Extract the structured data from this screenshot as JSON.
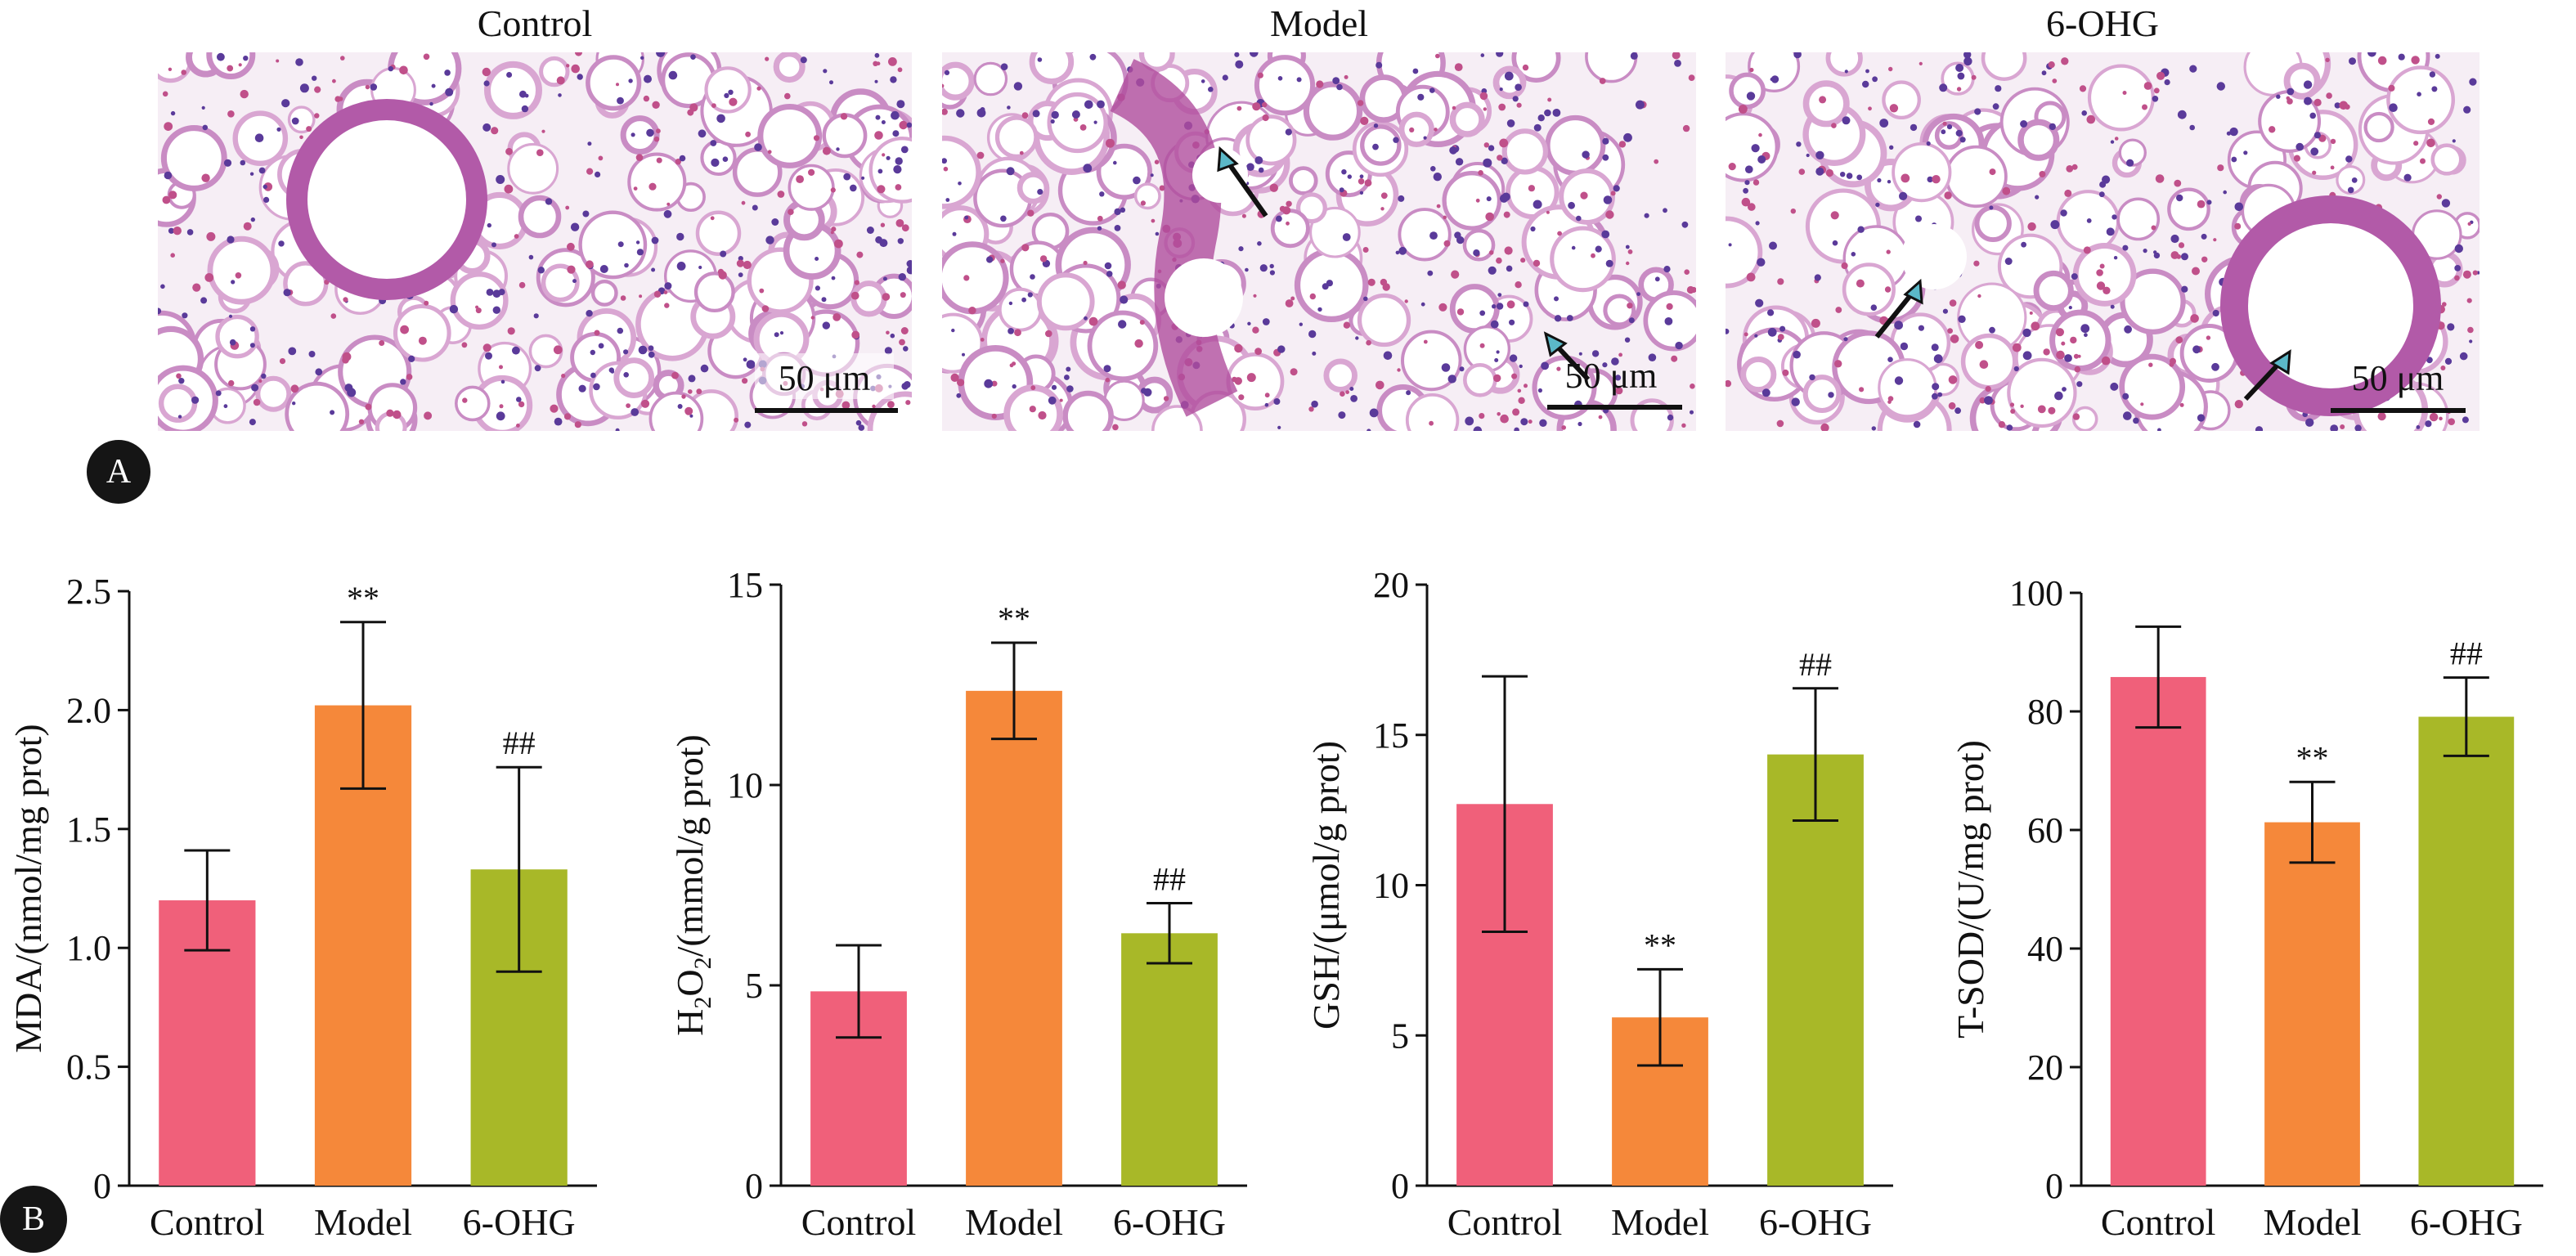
{
  "panel_a": {
    "letter": "A",
    "images": [
      {
        "title": "Control",
        "scale_bar": "50 μm"
      },
      {
        "title": "Model",
        "scale_bar": "50 μm"
      },
      {
        "title": "6-OHG",
        "scale_bar": "50 μm"
      }
    ]
  },
  "panel_b": {
    "letter": "B"
  },
  "colors": {
    "control": "#f0607a",
    "model": "#f5883a",
    "ohg": "#a8b828"
  },
  "chart_data": [
    {
      "type": "bar",
      "categories": [
        "Control",
        "Model",
        "6-OHG"
      ],
      "values": [
        1.2,
        2.02,
        1.33
      ],
      "errors": [
        0.21,
        0.35,
        0.43
      ],
      "annotations": [
        "",
        "**",
        "##"
      ],
      "ylabel_main": "MDA/(nmol/mg prot)",
      "ylabel_sub": "",
      "ylabel_tail": "",
      "ylim": [
        0,
        2.5
      ],
      "yticks": [
        0,
        0.5,
        1.0,
        1.5,
        2.0,
        2.5
      ],
      "ytick_labels": [
        "0",
        "0.5",
        "1.0",
        "1.5",
        "2.0",
        "2.5"
      ]
    },
    {
      "type": "bar",
      "categories": [
        "Control",
        "Model",
        "6-OHG"
      ],
      "values": [
        4.85,
        12.35,
        6.3
      ],
      "errors": [
        1.15,
        1.2,
        0.75
      ],
      "annotations": [
        "",
        "**",
        "##"
      ],
      "ylabel_main": "H",
      "ylabel_sub": "2",
      "ylabel_mid": "O",
      "ylabel_sub2": "2",
      "ylabel_tail": "/(mmol/g prot)",
      "ylim": [
        0,
        15
      ],
      "yticks": [
        0,
        5,
        10,
        15
      ],
      "ytick_labels": [
        "0",
        "5",
        "10",
        "15"
      ]
    },
    {
      "type": "bar",
      "categories": [
        "Control",
        "Model",
        "6-OHG"
      ],
      "values": [
        12.7,
        5.6,
        14.35
      ],
      "errors": [
        4.25,
        1.6,
        2.2
      ],
      "annotations": [
        "",
        "**",
        "##"
      ],
      "ylabel_main": "GSH/(μmol/g prot)",
      "ylabel_sub": "",
      "ylabel_tail": "",
      "ylim": [
        0,
        20
      ],
      "yticks": [
        0,
        5,
        10,
        15,
        20
      ],
      "ytick_labels": [
        "0",
        "5",
        "10",
        "15",
        "20"
      ]
    },
    {
      "type": "bar",
      "categories": [
        "Control",
        "Model",
        "6-OHG"
      ],
      "values": [
        85.8,
        61.3,
        79.1
      ],
      "errors": [
        8.5,
        6.8,
        6.6
      ],
      "annotations": [
        "",
        "**",
        "##"
      ],
      "ylabel_main": "T-SOD/(U/mg prot)",
      "ylabel_sub": "",
      "ylabel_tail": "",
      "ylim": [
        0,
        100
      ],
      "yticks": [
        0,
        20,
        40,
        60,
        80,
        100
      ],
      "ytick_labels": [
        "0",
        "20",
        "40",
        "60",
        "80",
        "100"
      ]
    }
  ]
}
